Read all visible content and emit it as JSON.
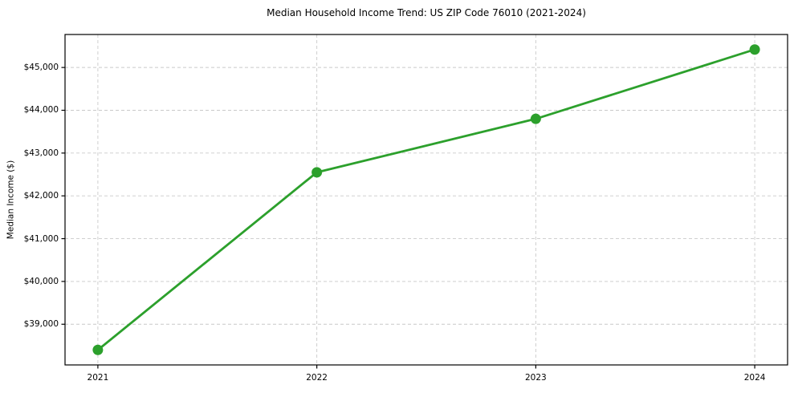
{
  "figure": {
    "background_color": "#ffffff",
    "text_color": "#000000"
  },
  "chart_data": {
    "type": "line",
    "title": "Median Household Income Trend: US ZIP Code 76010 (2021-2024)",
    "xlabel": "",
    "ylabel": "Median Income ($)",
    "x": [
      2021,
      2022,
      2023,
      2024
    ],
    "x_tick_labels": [
      "2021",
      "2022",
      "2023",
      "2024"
    ],
    "values": [
      38400,
      42550,
      43800,
      45420
    ],
    "line_color": "#2ca02c",
    "marker": "circle",
    "y_ticks": [
      {
        "value": 39000,
        "label": "$39,000"
      },
      {
        "value": 40000,
        "label": "$40,000"
      },
      {
        "value": 41000,
        "label": "$41,000"
      },
      {
        "value": 42000,
        "label": "$42,000"
      },
      {
        "value": 43000,
        "label": "$43,000"
      },
      {
        "value": 44000,
        "label": "$44,000"
      },
      {
        "value": 45000,
        "label": "$45,000"
      }
    ],
    "ylim": [
      38049,
      45771
    ],
    "xlim": [
      2020.85,
      2024.15
    ],
    "grid": {
      "visible": true,
      "style": "dashed",
      "color": "#c9c9c9"
    },
    "spine_color": "#000000",
    "legend": "none"
  }
}
